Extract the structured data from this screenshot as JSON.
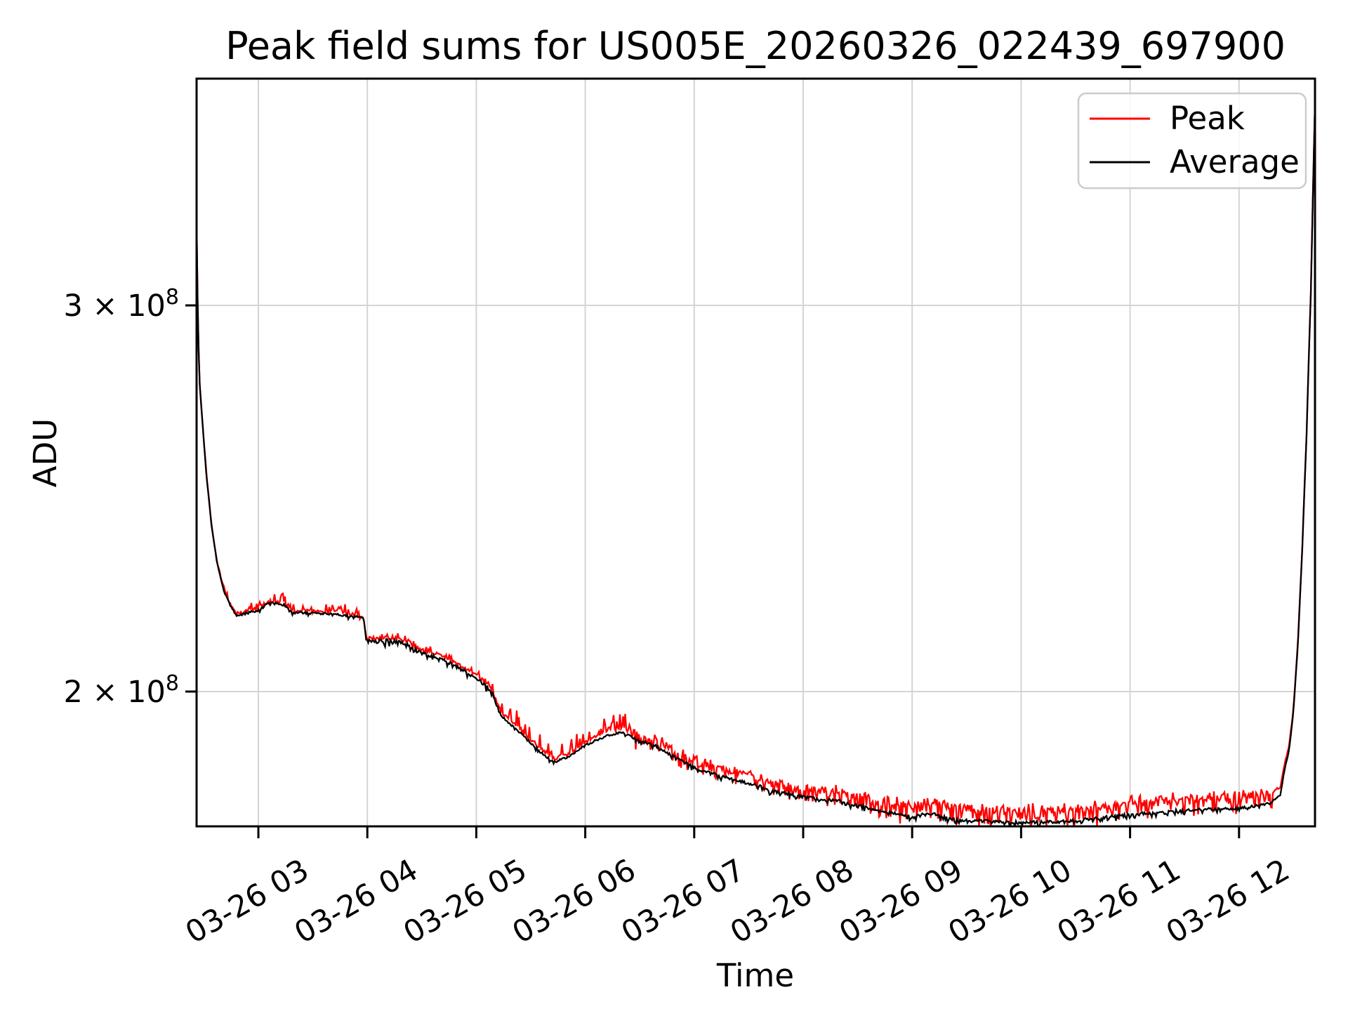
{
  "figure": {
    "background": "#ffffff"
  },
  "chart_data": {
    "type": "line",
    "title": "Peak field sums for US005E_20260326_022439_697900",
    "xlabel": "Time",
    "ylabel": "ADU",
    "yscale": "log",
    "grid": true,
    "legend_position": "upper right",
    "x_date": "2026-03-26",
    "xlim_hours": [
      2.433,
      12.703
    ],
    "ylim_adu": [
      173600000,
      380700000
    ],
    "x_ticks": [
      {
        "hour": 3,
        "label": "03-26 03"
      },
      {
        "hour": 4,
        "label": "03-26 04"
      },
      {
        "hour": 5,
        "label": "03-26 05"
      },
      {
        "hour": 6,
        "label": "03-26 06"
      },
      {
        "hour": 7,
        "label": "03-26 07"
      },
      {
        "hour": 8,
        "label": "03-26 08"
      },
      {
        "hour": 9,
        "label": "03-26 09"
      },
      {
        "hour": 10,
        "label": "03-26 10"
      },
      {
        "hour": 11,
        "label": "03-26 11"
      },
      {
        "hour": 12,
        "label": "03-26 12"
      }
    ],
    "y_ticks": [
      {
        "value": 200000000,
        "base": "2 × 10",
        "exponent": "8"
      },
      {
        "value": 300000000,
        "base": "3 × 10",
        "exponent": "8"
      }
    ],
    "colors": {
      "peak": "#ff0000",
      "average": "#000000",
      "grid": "#d4d4d4",
      "frame": "#000000",
      "legend_edge": "#cccccc",
      "background": "#ffffff"
    },
    "series": [
      {
        "name": "Peak",
        "color": "#ff0000",
        "ratio_to_average_keypoints": [
          [
            2.433,
            1.0
          ],
          [
            2.6,
            1.0015
          ],
          [
            2.85,
            1.002
          ],
          [
            3.97,
            1.002
          ],
          [
            4.05,
            1.003
          ],
          [
            5.2,
            1.003
          ],
          [
            5.3,
            1.0035
          ],
          [
            6.34,
            1.004
          ],
          [
            6.5,
            1.006
          ],
          [
            6.9,
            1.008
          ],
          [
            7.4,
            1.009
          ],
          [
            8.0,
            1.01
          ],
          [
            8.7,
            1.011
          ],
          [
            9.2,
            1.013
          ],
          [
            11.0,
            1.013
          ],
          [
            12.0,
            1.0125
          ],
          [
            12.32,
            1.01
          ],
          [
            12.45,
            1.005
          ],
          [
            12.55,
            1.002
          ],
          [
            12.703,
            1.001
          ]
        ]
      },
      {
        "name": "Average",
        "color": "#000000",
        "keypoints_hour_adu": [
          [
            2.433,
            328000000
          ],
          [
            2.44,
            306000000
          ],
          [
            2.45,
            288000000
          ],
          [
            2.462,
            276000000
          ],
          [
            2.475,
            270000000
          ],
          [
            2.52,
            252000000
          ],
          [
            2.57,
            238000000
          ],
          [
            2.62,
            229000000
          ],
          [
            2.68,
            222500000
          ],
          [
            2.74,
            219000000
          ],
          [
            2.8,
            216500000
          ],
          [
            2.9,
            217200000
          ],
          [
            3.0,
            217800000
          ],
          [
            3.06,
            219000000
          ],
          [
            3.15,
            219700000
          ],
          [
            3.24,
            219000000
          ],
          [
            3.3,
            217500000
          ],
          [
            3.45,
            217200000
          ],
          [
            3.6,
            217000000
          ],
          [
            3.75,
            216800000
          ],
          [
            3.9,
            216300000
          ],
          [
            3.965,
            216000000
          ],
          [
            3.99,
            210800000
          ],
          [
            4.2,
            211000000
          ],
          [
            4.35,
            210400000
          ],
          [
            4.49,
            208300000
          ],
          [
            4.69,
            207000000
          ],
          [
            4.9,
            204200000
          ],
          [
            5.0,
            203000000
          ],
          [
            5.1,
            201000000
          ],
          [
            5.15,
            199600000
          ],
          [
            5.18,
            197800000
          ],
          [
            5.23,
            195000000
          ],
          [
            5.3,
            193500000
          ],
          [
            5.45,
            190500000
          ],
          [
            5.6,
            187500000
          ],
          [
            5.71,
            185700000
          ],
          [
            5.85,
            186800000
          ],
          [
            6.0,
            189000000
          ],
          [
            6.2,
            191000000
          ],
          [
            6.34,
            191600000
          ],
          [
            6.5,
            190000000
          ],
          [
            6.64,
            189000000
          ],
          [
            6.86,
            186200000
          ],
          [
            7.07,
            184000000
          ],
          [
            7.28,
            182800000
          ],
          [
            7.61,
            181000000
          ],
          [
            7.72,
            180100000
          ],
          [
            7.91,
            179500000
          ],
          [
            8.0,
            179100000
          ],
          [
            8.36,
            178200000
          ],
          [
            8.68,
            176500000
          ],
          [
            9.0,
            175400000
          ],
          [
            9.16,
            176100000
          ],
          [
            9.39,
            174800000
          ],
          [
            10.0,
            174300000
          ],
          [
            10.42,
            174500000
          ],
          [
            11.0,
            175800000
          ],
          [
            11.58,
            176700000
          ],
          [
            11.97,
            176800000
          ],
          [
            12.29,
            177900000
          ],
          [
            12.38,
            179500000
          ],
          [
            12.42,
            184500000
          ],
          [
            12.46,
            188000000
          ],
          [
            12.5,
            196000000
          ],
          [
            12.54,
            210000000
          ],
          [
            12.58,
            232000000
          ],
          [
            12.62,
            262000000
          ],
          [
            12.66,
            305000000
          ],
          [
            12.703,
            381000000
          ]
        ]
      }
    ],
    "noise_model_segments": [
      {
        "t0": 2.433,
        "t1": 2.85,
        "avg_noise": 0.0008,
        "avg_dip": 0.002,
        "avg_dip_p": 0.05,
        "peak_noise": 0.0015,
        "peak_up": 0.004,
        "peak_up_p": 0.15,
        "peak_down": 0.0,
        "peak_down_p": 0.0
      },
      {
        "t0": 2.85,
        "t1": 3.97,
        "avg_noise": 0.0012,
        "avg_dip": 0.003,
        "avg_dip_p": 0.1,
        "peak_noise": 0.002,
        "peak_up": 0.01,
        "peak_up_p": 0.4,
        "peak_down": 0.003,
        "peak_down_p": 0.05
      },
      {
        "t0": 3.97,
        "t1": 5.2,
        "avg_noise": 0.0018,
        "avg_dip": 0.005,
        "avg_dip_p": 0.3,
        "peak_noise": 0.002,
        "peak_up": 0.005,
        "peak_up_p": 0.25,
        "peak_down": 0.003,
        "peak_down_p": 0.1
      },
      {
        "t0": 5.2,
        "t1": 6.4,
        "avg_noise": 0.0012,
        "avg_dip": 0.003,
        "avg_dip_p": 0.1,
        "peak_noise": 0.002,
        "peak_up": 0.016,
        "peak_up_p": 0.35,
        "peak_down": 0.003,
        "peak_down_p": 0.05
      },
      {
        "t0": 6.4,
        "t1": 8.5,
        "avg_noise": 0.0015,
        "avg_dip": 0.004,
        "avg_dip_p": 0.2,
        "peak_noise": 0.0035,
        "peak_up": 0.004,
        "peak_up_p": 0.3,
        "peak_down": 0.016,
        "peak_down_p": 0.45
      },
      {
        "t0": 8.5,
        "t1": 12.32,
        "avg_noise": 0.0015,
        "avg_dip": 0.004,
        "avg_dip_p": 0.3,
        "peak_noise": 0.004,
        "peak_up": 0.004,
        "peak_up_p": 0.3,
        "peak_down": 0.018,
        "peak_down_p": 0.45
      },
      {
        "t0": 12.32,
        "t1": 12.703,
        "avg_noise": 0.0008,
        "avg_dip": 0.0,
        "avg_dip_p": 0.0,
        "peak_noise": 0.0012,
        "peak_up": 0.002,
        "peak_up_p": 0.1,
        "peak_down": 0.0,
        "peak_down_p": 0.0
      }
    ]
  }
}
